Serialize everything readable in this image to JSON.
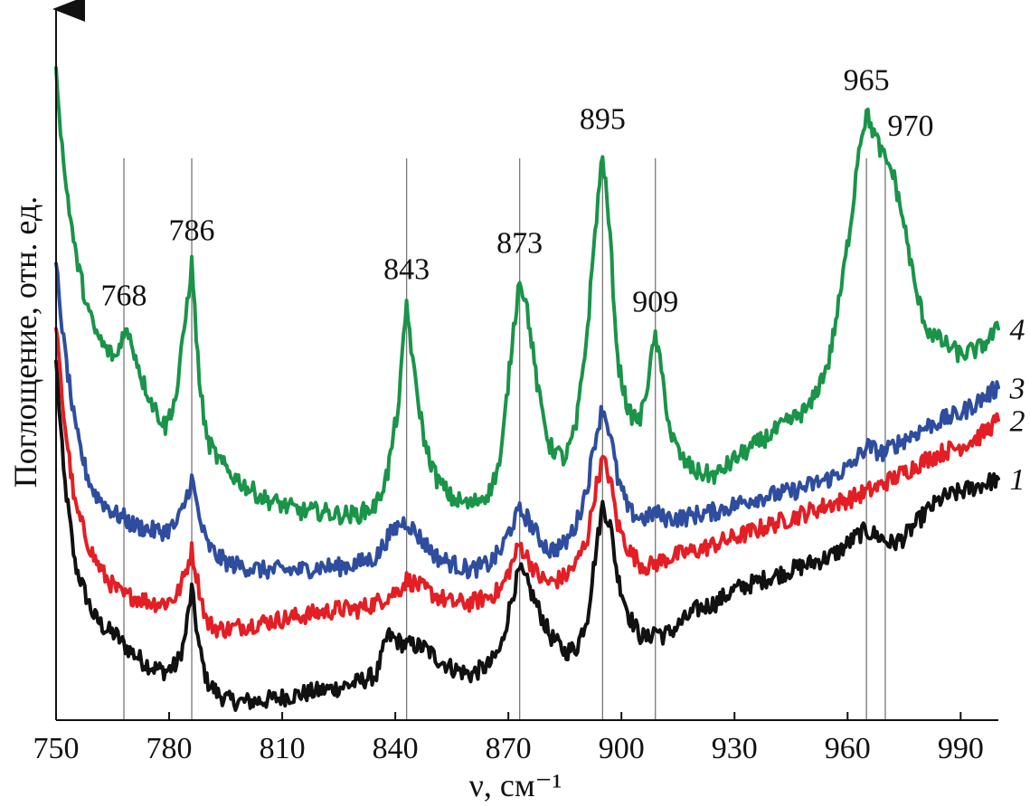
{
  "chart_data": {
    "type": "line",
    "title": "",
    "xlabel": "ν, см⁻¹",
    "ylabel": "Поглощение, отн. ед.",
    "xlim": [
      750,
      1000
    ],
    "ylim": [
      0,
      1
    ],
    "x_ticks": [
      750,
      780,
      810,
      840,
      870,
      900,
      930,
      960,
      990
    ],
    "grid": false,
    "y_ticks_shown": false,
    "peak_markers": [
      768,
      786,
      843,
      873,
      895,
      909,
      965,
      970
    ],
    "peak_labels": [
      {
        "x": 768,
        "text": "768"
      },
      {
        "x": 786,
        "text": "786"
      },
      {
        "x": 843,
        "text": "843"
      },
      {
        "x": 873,
        "text": "873"
      },
      {
        "x": 895,
        "text": "895"
      },
      {
        "x": 909,
        "text": "909"
      },
      {
        "x": 965,
        "text": "965"
      },
      {
        "x": 970,
        "text": "970"
      }
    ],
    "x": [
      750,
      752,
      755,
      758,
      760,
      763,
      766,
      768,
      770,
      773,
      776,
      779,
      782,
      784,
      786,
      788,
      790,
      793,
      796,
      800,
      805,
      810,
      815,
      820,
      825,
      830,
      835,
      838,
      841,
      843,
      845,
      848,
      851,
      855,
      860,
      865,
      868,
      871,
      873,
      875,
      878,
      881,
      885,
      888,
      891,
      893,
      895,
      897,
      899,
      902,
      905,
      907,
      909,
      911,
      913,
      916,
      920,
      925,
      930,
      935,
      940,
      945,
      950,
      955,
      958,
      961,
      963,
      965,
      967,
      969,
      970,
      972,
      975,
      978,
      981,
      985,
      990,
      995,
      1000
    ],
    "series": [
      {
        "label": "1",
        "color": "#111111",
        "values": [
          0.55,
          0.38,
          0.24,
          0.19,
          0.16,
          0.14,
          0.13,
          0.115,
          0.105,
          0.09,
          0.08,
          0.075,
          0.085,
          0.12,
          0.2,
          0.11,
          0.06,
          0.04,
          0.03,
          0.028,
          0.03,
          0.035,
          0.04,
          0.045,
          0.05,
          0.058,
          0.07,
          0.13,
          0.12,
          0.115,
          0.115,
          0.11,
          0.095,
          0.08,
          0.07,
          0.085,
          0.11,
          0.19,
          0.23,
          0.21,
          0.17,
          0.13,
          0.105,
          0.11,
          0.16,
          0.25,
          0.33,
          0.3,
          0.22,
          0.16,
          0.13,
          0.125,
          0.14,
          0.13,
          0.135,
          0.15,
          0.17,
          0.18,
          0.2,
          0.21,
          0.22,
          0.23,
          0.24,
          0.25,
          0.26,
          0.275,
          0.285,
          0.29,
          0.285,
          0.28,
          0.275,
          0.27,
          0.28,
          0.3,
          0.32,
          0.34,
          0.35,
          0.36,
          0.37
        ]
      },
      {
        "label": "2",
        "color": "#e31e24",
        "values": [
          0.6,
          0.47,
          0.33,
          0.28,
          0.25,
          0.22,
          0.2,
          0.19,
          0.19,
          0.185,
          0.18,
          0.18,
          0.19,
          0.22,
          0.26,
          0.2,
          0.15,
          0.14,
          0.14,
          0.145,
          0.15,
          0.155,
          0.16,
          0.165,
          0.17,
          0.17,
          0.18,
          0.19,
          0.2,
          0.215,
          0.21,
          0.2,
          0.19,
          0.18,
          0.18,
          0.19,
          0.2,
          0.24,
          0.27,
          0.25,
          0.22,
          0.21,
          0.22,
          0.24,
          0.28,
          0.35,
          0.4,
          0.37,
          0.3,
          0.26,
          0.24,
          0.235,
          0.24,
          0.245,
          0.25,
          0.255,
          0.26,
          0.27,
          0.28,
          0.29,
          0.3,
          0.31,
          0.32,
          0.33,
          0.335,
          0.34,
          0.345,
          0.35,
          0.355,
          0.36,
          0.365,
          0.37,
          0.38,
          0.39,
          0.4,
          0.41,
          0.42,
          0.435,
          0.46
        ]
      },
      {
        "label": "3",
        "color": "#2e4d9e",
        "values": [
          0.7,
          0.58,
          0.45,
          0.38,
          0.35,
          0.33,
          0.315,
          0.31,
          0.3,
          0.295,
          0.29,
          0.29,
          0.3,
          0.33,
          0.37,
          0.31,
          0.27,
          0.25,
          0.24,
          0.235,
          0.23,
          0.23,
          0.23,
          0.235,
          0.235,
          0.24,
          0.25,
          0.28,
          0.3,
          0.305,
          0.29,
          0.27,
          0.25,
          0.24,
          0.23,
          0.24,
          0.26,
          0.3,
          0.32,
          0.31,
          0.28,
          0.26,
          0.27,
          0.3,
          0.36,
          0.43,
          0.48,
          0.44,
          0.37,
          0.32,
          0.31,
          0.31,
          0.32,
          0.31,
          0.31,
          0.31,
          0.315,
          0.32,
          0.33,
          0.34,
          0.345,
          0.35,
          0.36,
          0.37,
          0.38,
          0.39,
          0.405,
          0.42,
          0.415,
          0.41,
          0.41,
          0.42,
          0.43,
          0.44,
          0.45,
          0.46,
          0.47,
          0.49,
          0.51
        ]
      },
      {
        "label": "4",
        "color": "#199448",
        "values": [
          1.0,
          0.85,
          0.72,
          0.64,
          0.6,
          0.57,
          0.555,
          0.6,
          0.58,
          0.52,
          0.48,
          0.45,
          0.5,
          0.6,
          0.7,
          0.52,
          0.43,
          0.4,
          0.38,
          0.36,
          0.34,
          0.33,
          0.32,
          0.32,
          0.315,
          0.315,
          0.33,
          0.38,
          0.49,
          0.64,
          0.53,
          0.42,
          0.37,
          0.34,
          0.33,
          0.35,
          0.4,
          0.58,
          0.68,
          0.63,
          0.5,
          0.42,
          0.4,
          0.45,
          0.6,
          0.75,
          0.87,
          0.74,
          0.55,
          0.47,
          0.46,
          0.52,
          0.59,
          0.52,
          0.44,
          0.4,
          0.38,
          0.375,
          0.4,
          0.42,
          0.44,
          0.46,
          0.48,
          0.55,
          0.65,
          0.77,
          0.88,
          0.93,
          0.9,
          0.87,
          0.86,
          0.84,
          0.76,
          0.66,
          0.6,
          0.58,
          0.56,
          0.57,
          0.6
        ]
      }
    ]
  }
}
